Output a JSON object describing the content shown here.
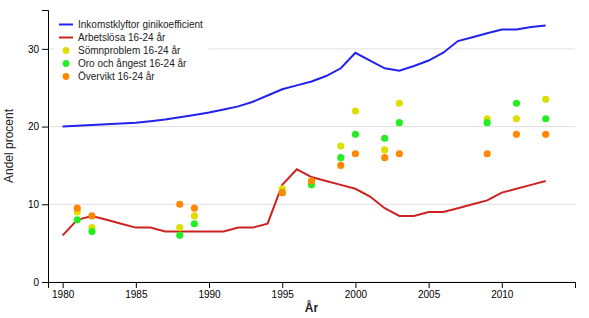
{
  "chart_data": {
    "type": "line",
    "xlabel": "År",
    "ylabel": "Andel procent",
    "xlim": [
      1979,
      2015
    ],
    "ylim": [
      0,
      35
    ],
    "xticks": [
      1980,
      1985,
      1990,
      1995,
      2000,
      2005,
      2010
    ],
    "yticks": [
      0,
      10,
      20,
      30
    ],
    "grid": true,
    "legend": "upper left",
    "series": [
      {
        "name": "Inkomstklyftor ginikoefficient",
        "type": "line",
        "color": "#2222ee",
        "x": [
          1980,
          1981,
          1982,
          1983,
          1984,
          1985,
          1986,
          1987,
          1988,
          1989,
          1990,
          1991,
          1992,
          1993,
          1994,
          1995,
          1996,
          1997,
          1998,
          1999,
          2000,
          2001,
          2002,
          2003,
          2004,
          2005,
          2006,
          2007,
          2008,
          2009,
          2010,
          2011,
          2012,
          2013
        ],
        "values": [
          20.0,
          20.1,
          20.2,
          20.3,
          20.4,
          20.5,
          20.7,
          20.9,
          21.2,
          21.5,
          21.8,
          22.2,
          22.6,
          23.2,
          24.0,
          24.8,
          25.3,
          25.8,
          26.5,
          27.5,
          29.5,
          28.5,
          27.5,
          27.2,
          27.8,
          28.5,
          29.5,
          31.0,
          31.5,
          32.0,
          32.5,
          32.5,
          32.8,
          33.0
        ]
      },
      {
        "name": "Arbetslösa 16-24 år",
        "type": "line",
        "color": "#cc2222",
        "x": [
          1980,
          1981,
          1982,
          1983,
          1984,
          1985,
          1986,
          1987,
          1988,
          1989,
          1990,
          1991,
          1992,
          1993,
          1994,
          1995,
          1996,
          1997,
          1998,
          1999,
          2000,
          2001,
          2002,
          2003,
          2004,
          2005,
          2006,
          2007,
          2008,
          2009,
          2010,
          2011,
          2012,
          2013
        ],
        "values": [
          6.0,
          8.0,
          8.5,
          8.0,
          7.5,
          7.0,
          7.0,
          6.5,
          6.5,
          6.5,
          6.5,
          6.5,
          7.0,
          7.0,
          7.5,
          12.5,
          14.5,
          13.5,
          13.0,
          12.5,
          12.0,
          11.0,
          9.5,
          8.5,
          8.5,
          9.0,
          9.0,
          9.5,
          10.0,
          10.5,
          11.5,
          12.0,
          12.5,
          13.0
        ]
      },
      {
        "name": "Sömnproblem 16-24 år",
        "type": "scatter",
        "marker": "circle",
        "color": "#dddd00",
        "x": [
          1981,
          1982,
          1988,
          1989,
          1995,
          1997,
          1999,
          2000,
          2002,
          2003,
          2009,
          2011,
          2013
        ],
        "values": [
          9.0,
          7.0,
          7.0,
          8.5,
          12.0,
          13.0,
          17.5,
          22.0,
          17.0,
          23.0,
          21.0,
          21.0,
          23.5
        ]
      },
      {
        "name": "Oro och ångest 16-24 år",
        "type": "scatter",
        "marker": "circle",
        "color": "#22ee22",
        "x": [
          1981,
          1982,
          1988,
          1989,
          1995,
          1997,
          1999,
          2000,
          2002,
          2003,
          2009,
          2011,
          2013
        ],
        "values": [
          8.0,
          6.5,
          6.0,
          7.5,
          11.5,
          12.5,
          16.0,
          19.0,
          18.5,
          20.5,
          20.5,
          23.0,
          21.0
        ]
      },
      {
        "name": "Övervikt 16-24 år",
        "type": "scatter",
        "marker": "circle",
        "color": "#ff8800",
        "x": [
          1981,
          1982,
          1988,
          1989,
          1995,
          1997,
          1999,
          2000,
          2002,
          2003,
          2009,
          2011,
          2013
        ],
        "values": [
          9.5,
          8.5,
          10.0,
          9.5,
          11.5,
          13.0,
          15.0,
          16.5,
          16.0,
          16.5,
          16.5,
          19.0,
          19.0
        ]
      }
    ]
  }
}
